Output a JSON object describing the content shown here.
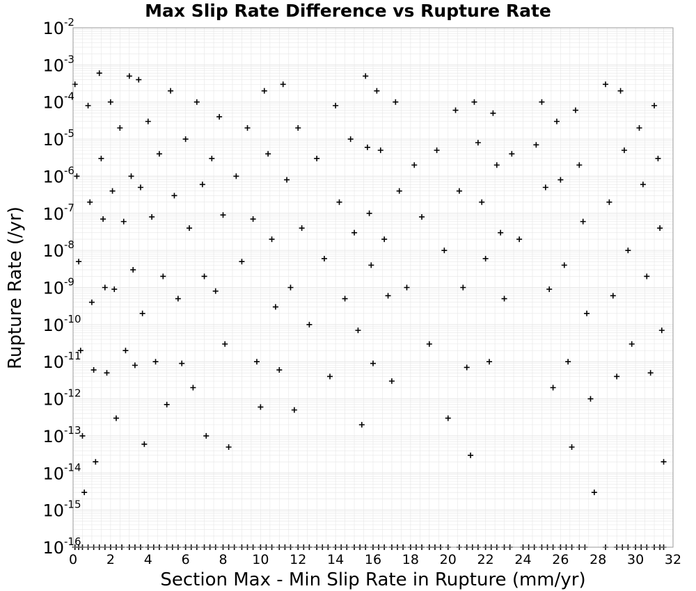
{
  "chart_data": {
    "type": "scatter",
    "title": "Max Slip Rate Difference vs Rupture Rate",
    "xlabel": "Section Max - Min Slip Rate in Rupture (mm/yr)",
    "ylabel": "Rupture Rate (/yr)",
    "xlim": [
      0,
      32
    ],
    "ylim": [
      1e-16,
      0.01
    ],
    "yscale": "log",
    "grid": true,
    "marker": "+",
    "marker_color": "#000000",
    "grid_color": "#e6e6e6",
    "x_ticks": [
      {
        "value": 0,
        "label": "0"
      },
      {
        "value": 2,
        "label": "2"
      },
      {
        "value": 4,
        "label": "4"
      },
      {
        "value": 6,
        "label": "6"
      },
      {
        "value": 8,
        "label": "8"
      },
      {
        "value": 10,
        "label": "10"
      },
      {
        "value": 12,
        "label": "12"
      },
      {
        "value": 14,
        "label": "14"
      },
      {
        "value": 16,
        "label": "16"
      },
      {
        "value": 18,
        "label": "18"
      },
      {
        "value": 20,
        "label": "20"
      },
      {
        "value": 22,
        "label": "22"
      },
      {
        "value": 24,
        "label": "24"
      },
      {
        "value": 26,
        "label": "26"
      },
      {
        "value": 28,
        "label": "28"
      },
      {
        "value": 30,
        "label": "30"
      },
      {
        "value": 32,
        "label": "32"
      }
    ],
    "y_ticks": [
      {
        "value": 1e-16,
        "base": "10",
        "exp": "-16"
      },
      {
        "value": 1e-15,
        "base": "10",
        "exp": "-15"
      },
      {
        "value": 1e-14,
        "base": "10",
        "exp": "-14"
      },
      {
        "value": 1e-13,
        "base": "10",
        "exp": "-13"
      },
      {
        "value": 1e-12,
        "base": "10",
        "exp": "-12"
      },
      {
        "value": 1e-11,
        "base": "10",
        "exp": "-11"
      },
      {
        "value": 1e-10,
        "base": "10",
        "exp": "-10"
      },
      {
        "value": 1e-09,
        "base": "10",
        "exp": "-9"
      },
      {
        "value": 1e-08,
        "base": "10",
        "exp": "-8"
      },
      {
        "value": 1e-07,
        "base": "10",
        "exp": "-7"
      },
      {
        "value": 1e-06,
        "base": "10",
        "exp": "-6"
      },
      {
        "value": 1e-05,
        "base": "10",
        "exp": "-5"
      },
      {
        "value": 0.0001,
        "base": "10",
        "exp": "-4"
      },
      {
        "value": 0.001,
        "base": "10",
        "exp": "-3"
      },
      {
        "value": 0.01,
        "base": "10",
        "exp": "-2"
      }
    ],
    "series": [
      {
        "points": [
          [
            0.1,
            0.0003
          ],
          [
            0.2,
            1e-06
          ],
          [
            0.3,
            5e-09
          ],
          [
            0.4,
            2e-11
          ],
          [
            0.5,
            1e-13
          ],
          [
            0.6,
            3e-15
          ],
          [
            0.8,
            8e-05
          ],
          [
            0.9,
            2e-07
          ],
          [
            1.0,
            4e-10
          ],
          [
            1.1,
            6e-12
          ],
          [
            1.2,
            2e-14
          ],
          [
            1.4,
            0.0006
          ],
          [
            1.5,
            3e-06
          ],
          [
            1.6,
            7e-08
          ],
          [
            1.7,
            1e-09
          ],
          [
            1.8,
            5e-12
          ],
          [
            2.0,
            0.0001
          ],
          [
            2.1,
            4e-07
          ],
          [
            2.2,
            9e-10
          ],
          [
            2.3,
            3e-13
          ],
          [
            2.5,
            2e-05
          ],
          [
            2.7,
            6e-08
          ],
          [
            2.8,
            2e-11
          ],
          [
            3.0,
            0.0005
          ],
          [
            3.1,
            1e-06
          ],
          [
            3.2,
            3e-09
          ],
          [
            3.3,
            8e-12
          ],
          [
            3.5,
            0.0004
          ],
          [
            3.6,
            5e-07
          ],
          [
            3.7,
            2e-10
          ],
          [
            3.8,
            6e-14
          ],
          [
            4.0,
            3e-05
          ],
          [
            4.2,
            8e-08
          ],
          [
            4.4,
            1e-11
          ],
          [
            4.6,
            4e-06
          ],
          [
            4.8,
            2e-09
          ],
          [
            5.0,
            7e-13
          ],
          [
            5.2,
            0.0002
          ],
          [
            5.4,
            3e-07
          ],
          [
            5.6,
            5e-10
          ],
          [
            5.8,
            9e-12
          ],
          [
            6.0,
            1e-05
          ],
          [
            6.2,
            4e-08
          ],
          [
            6.4,
            2e-12
          ],
          [
            6.6,
            0.0001
          ],
          [
            6.9,
            6e-07
          ],
          [
            7.0,
            2e-09
          ],
          [
            7.1,
            1e-13
          ],
          [
            7.4,
            3e-06
          ],
          [
            7.6,
            8e-10
          ],
          [
            7.8,
            4e-05
          ],
          [
            8.0,
            9e-08
          ],
          [
            8.1,
            3e-11
          ],
          [
            8.3,
            5e-14
          ],
          [
            8.7,
            1e-06
          ],
          [
            9.0,
            5e-09
          ],
          [
            9.3,
            2e-05
          ],
          [
            9.6,
            7e-08
          ],
          [
            9.8,
            1e-11
          ],
          [
            10.0,
            6e-13
          ],
          [
            10.2,
            0.0002
          ],
          [
            10.4,
            4e-06
          ],
          [
            10.6,
            2e-08
          ],
          [
            10.8,
            3e-10
          ],
          [
            11.0,
            6e-12
          ],
          [
            11.2,
            0.0003
          ],
          [
            11.4,
            8e-07
          ],
          [
            11.6,
            1e-09
          ],
          [
            11.8,
            5e-13
          ],
          [
            12.0,
            2e-05
          ],
          [
            12.2,
            4e-08
          ],
          [
            12.6,
            1e-10
          ],
          [
            13.0,
            3e-06
          ],
          [
            13.4,
            6e-09
          ],
          [
            13.7,
            4e-12
          ],
          [
            14.0,
            8e-05
          ],
          [
            14.2,
            2e-07
          ],
          [
            14.5,
            5e-10
          ],
          [
            14.8,
            1e-05
          ],
          [
            15.0,
            3e-08
          ],
          [
            15.2,
            7e-11
          ],
          [
            15.4,
            2e-13
          ],
          [
            15.6,
            0.0005
          ],
          [
            15.7,
            6e-06
          ],
          [
            15.8,
            1e-07
          ],
          [
            15.9,
            4e-09
          ],
          [
            16.0,
            9e-12
          ],
          [
            16.2,
            0.0002
          ],
          [
            16.4,
            5e-06
          ],
          [
            16.6,
            2e-08
          ],
          [
            16.8,
            6e-10
          ],
          [
            17.0,
            3e-12
          ],
          [
            17.2,
            0.0001
          ],
          [
            17.4,
            4e-07
          ],
          [
            17.8,
            1e-09
          ],
          [
            18.2,
            2e-06
          ],
          [
            18.6,
            8e-08
          ],
          [
            19.0,
            3e-11
          ],
          [
            19.4,
            5e-06
          ],
          [
            19.8,
            1e-08
          ],
          [
            20.0,
            3e-13
          ],
          [
            20.4,
            6e-05
          ],
          [
            20.6,
            4e-07
          ],
          [
            20.8,
            1e-09
          ],
          [
            21.0,
            7e-12
          ],
          [
            21.2,
            3e-14
          ],
          [
            21.4,
            0.0001
          ],
          [
            21.6,
            8e-06
          ],
          [
            21.8,
            2e-07
          ],
          [
            22.0,
            6e-09
          ],
          [
            22.2,
            1e-11
          ],
          [
            22.4,
            5e-05
          ],
          [
            22.6,
            2e-06
          ],
          [
            22.8,
            3e-08
          ],
          [
            23.0,
            5e-10
          ],
          [
            23.4,
            4e-06
          ],
          [
            23.8,
            2e-08
          ],
          [
            24.7,
            7e-06
          ],
          [
            25.0,
            0.0001
          ],
          [
            25.2,
            5e-07
          ],
          [
            25.4,
            9e-10
          ],
          [
            25.6,
            2e-12
          ],
          [
            25.8,
            3e-05
          ],
          [
            26.0,
            8e-07
          ],
          [
            26.2,
            4e-09
          ],
          [
            26.4,
            1e-11
          ],
          [
            26.6,
            5e-14
          ],
          [
            26.8,
            6e-05
          ],
          [
            27.0,
            2e-06
          ],
          [
            27.2,
            6e-08
          ],
          [
            27.4,
            2e-10
          ],
          [
            27.6,
            1e-12
          ],
          [
            27.8,
            3e-15
          ],
          [
            28.4,
            0.0003
          ],
          [
            28.6,
            2e-07
          ],
          [
            28.8,
            6e-10
          ],
          [
            29.0,
            4e-12
          ],
          [
            29.2,
            0.0002
          ],
          [
            29.4,
            5e-06
          ],
          [
            29.6,
            1e-08
          ],
          [
            29.8,
            3e-11
          ],
          [
            30.2,
            2e-05
          ],
          [
            30.4,
            6e-07
          ],
          [
            30.6,
            2e-09
          ],
          [
            30.8,
            5e-12
          ],
          [
            31.0,
            8e-05
          ],
          [
            31.2,
            3e-06
          ],
          [
            31.3,
            4e-08
          ],
          [
            31.4,
            7e-11
          ],
          [
            31.5,
            2e-14
          ]
        ]
      }
    ],
    "floor_points_x": [
      0.1,
      0.3,
      0.5,
      0.8,
      1.1,
      1.4,
      1.7,
      2.0,
      2.3,
      2.6,
      3.0,
      3.3,
      3.6,
      4.0,
      4.3,
      4.6,
      5.0,
      5.3,
      5.6,
      6.0,
      6.3,
      6.6,
      7.0,
      7.3,
      7.6,
      8.0,
      8.3,
      8.6,
      9.0,
      9.3,
      9.6,
      10.0,
      10.3,
      10.6,
      11.0,
      11.3,
      11.6,
      12.0,
      12.3,
      12.6,
      13.0,
      13.3,
      13.6,
      14.0,
      14.3,
      14.6,
      15.0,
      15.3,
      15.6,
      16.0,
      16.3,
      16.6,
      17.0,
      17.3,
      17.6,
      18.0,
      18.3,
      18.6,
      19.0,
      19.3,
      19.6,
      20.0,
      20.6,
      21.0,
      21.3,
      21.6,
      22.0,
      22.3,
      22.6,
      23.0,
      23.3,
      24.0,
      24.3,
      24.6,
      25.0,
      25.3,
      25.6,
      26.0,
      26.3,
      26.6,
      27.0,
      27.3,
      28.4,
      29.0,
      29.3,
      29.6,
      30.0,
      30.3,
      30.6,
      31.0,
      31.3,
      31.5
    ]
  }
}
